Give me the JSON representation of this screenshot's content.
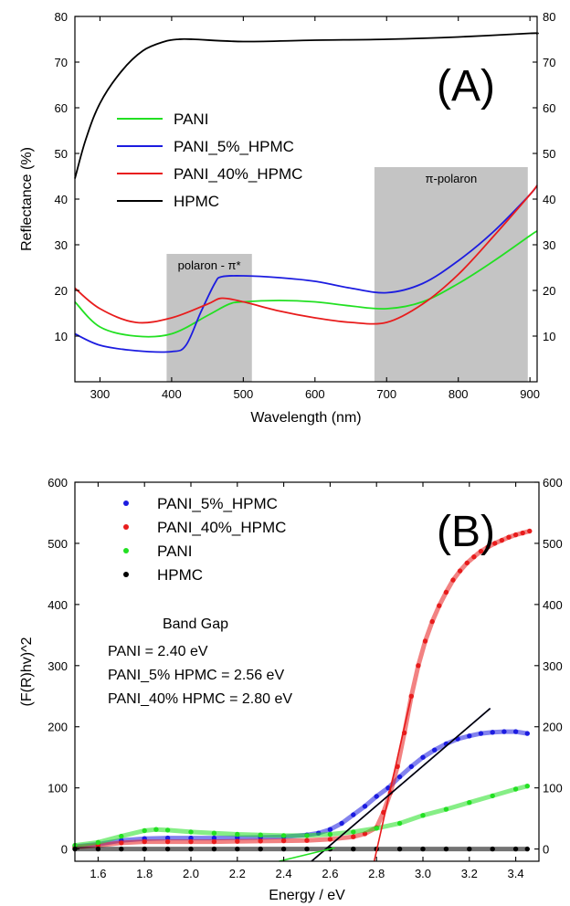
{
  "chart_data": [
    {
      "panel": "(A)",
      "type": "line",
      "xlabel": "Wavelength (nm)",
      "ylabel": "Reflectance (%)",
      "xlim": [
        265,
        910
      ],
      "ylim": [
        0,
        80
      ],
      "xticks": [
        300,
        400,
        500,
        600,
        700,
        800,
        900
      ],
      "yticks": [
        10,
        20,
        30,
        40,
        50,
        60,
        70,
        80
      ],
      "legend_position": "left",
      "shaded_regions": [
        {
          "label": "polaron - π*",
          "x": [
            393,
            512
          ],
          "y": [
            0,
            28
          ]
        },
        {
          "label": "π-polaron",
          "x": [
            683,
            897
          ],
          "y": [
            0,
            47
          ]
        }
      ],
      "series": [
        {
          "name": "PANI",
          "color": "#22e022",
          "x": [
            265,
            300,
            350,
            400,
            450,
            480,
            500,
            550,
            600,
            650,
            700,
            750,
            800,
            850,
            900,
            910
          ],
          "y": [
            17.5,
            12,
            10,
            10.5,
            14.5,
            17,
            17.5,
            17.8,
            17.5,
            16.6,
            16,
            17.5,
            21.5,
            26.5,
            32,
            33
          ]
        },
        {
          "name": "PANI_5%_HPMC",
          "color": "#1c1ce0",
          "x": [
            265,
            300,
            350,
            400,
            420,
            440,
            460,
            470,
            500,
            550,
            600,
            650,
            700,
            750,
            800,
            850,
            900,
            910
          ],
          "y": [
            10.5,
            8,
            6.8,
            6.6,
            8,
            15,
            21.5,
            23,
            23.2,
            22.8,
            22,
            20.5,
            19.5,
            21.5,
            26.5,
            33,
            41,
            43
          ]
        },
        {
          "name": "PANI_40%_HPMC",
          "color": "#e81c1c",
          "x": [
            265,
            300,
            350,
            400,
            450,
            470,
            500,
            550,
            600,
            650,
            700,
            750,
            800,
            850,
            900,
            910
          ],
          "y": [
            20.5,
            16,
            13,
            14,
            17,
            18.3,
            17.5,
            15.5,
            14,
            13,
            13,
            17,
            23.5,
            32,
            41,
            43
          ]
        },
        {
          "name": "HPMC",
          "color": "#000000",
          "x": [
            265,
            280,
            300,
            330,
            360,
            390,
            410,
            430,
            500,
            600,
            700,
            800,
            900,
            910
          ],
          "y": [
            44.5,
            53,
            61,
            68,
            72.5,
            74.5,
            75,
            75,
            74.5,
            74.8,
            75,
            75.5,
            76.3,
            76.2
          ]
        }
      ]
    },
    {
      "panel": "(B)",
      "type": "scatter",
      "xlabel": "Energy / eV",
      "ylabel": "(F(R)hv)^2",
      "xlim": [
        1.5,
        3.5
      ],
      "ylim": [
        -20,
        600
      ],
      "xticks": [
        1.6,
        1.8,
        2.0,
        2.2,
        2.4,
        2.6,
        2.8,
        3.0,
        3.2,
        3.4
      ],
      "yticks": [
        0,
        100,
        200,
        300,
        400,
        500,
        600
      ],
      "legend_position": "top-left",
      "annotation_title": "Band Gap",
      "annotation_lines": [
        "PANI = 2.40 eV",
        "PANI_5% HPMC = 2.56 eV",
        "PANI_40% HPMC = 2.80 eV"
      ],
      "series": [
        {
          "name": "PANI_5%_HPMC",
          "color": "#1c1ce0",
          "x": [
            1.5,
            1.6,
            1.7,
            1.8,
            1.9,
            2.0,
            2.1,
            2.2,
            2.3,
            2.4,
            2.5,
            2.55,
            2.6,
            2.65,
            2.7,
            2.75,
            2.8,
            2.85,
            2.9,
            2.95,
            3.0,
            3.05,
            3.1,
            3.15,
            3.2,
            3.25,
            3.3,
            3.35,
            3.4,
            3.45
          ],
          "y": [
            4,
            8,
            14,
            17,
            18,
            18,
            18,
            18.5,
            19,
            20,
            23,
            26,
            32,
            42,
            56,
            70,
            86,
            100,
            118,
            135,
            150,
            162,
            172,
            180,
            185,
            189,
            191,
            192,
            192,
            189
          ]
        },
        {
          "name": "PANI_40%_HPMC",
          "color": "#e81c1c",
          "x": [
            1.5,
            1.6,
            1.7,
            1.8,
            1.9,
            2.0,
            2.1,
            2.2,
            2.3,
            2.4,
            2.5,
            2.6,
            2.7,
            2.75,
            2.8,
            2.83,
            2.86,
            2.89,
            2.92,
            2.95,
            2.98,
            3.01,
            3.04,
            3.07,
            3.1,
            3.13,
            3.16,
            3.19,
            3.22,
            3.25,
            3.28,
            3.31,
            3.34,
            3.37,
            3.4,
            3.43,
            3.46
          ],
          "y": [
            3,
            6,
            10,
            12,
            12,
            12,
            12,
            12.5,
            13,
            13.5,
            14,
            16,
            20,
            25,
            35,
            60,
            92,
            135,
            190,
            250,
            300,
            340,
            372,
            398,
            420,
            440,
            455,
            468,
            478,
            487,
            494,
            500,
            505,
            510,
            514,
            517,
            520
          ]
        },
        {
          "name": "PANI",
          "color": "#22e022",
          "x": [
            1.5,
            1.6,
            1.7,
            1.8,
            1.85,
            1.9,
            2.0,
            2.1,
            2.2,
            2.3,
            2.4,
            2.5,
            2.6,
            2.7,
            2.8,
            2.9,
            3.0,
            3.1,
            3.2,
            3.3,
            3.4,
            3.45
          ],
          "y": [
            6,
            11,
            21,
            30,
            32,
            31,
            28,
            26,
            24,
            23,
            22,
            22,
            24,
            28,
            34,
            42,
            55,
            65,
            76,
            87,
            98,
            103
          ]
        },
        {
          "name": "HPMC",
          "color": "#000000",
          "x": [
            1.5,
            1.6,
            1.7,
            1.8,
            1.9,
            2.0,
            2.1,
            2.2,
            2.3,
            2.4,
            2.5,
            2.6,
            2.7,
            2.8,
            2.9,
            3.0,
            3.1,
            3.2,
            3.3,
            3.4,
            3.45
          ],
          "y": [
            0,
            0,
            0,
            0,
            0,
            0,
            0,
            0,
            0,
            0,
            0,
            0,
            0,
            0,
            0,
            0,
            0,
            0,
            0,
            0,
            0
          ]
        }
      ],
      "fit_lines": [
        {
          "color": "#e81c1c",
          "x": [
            2.79,
            2.95
          ],
          "y": [
            -20,
            250
          ]
        },
        {
          "color": "#1c1ce0",
          "x": [
            2.52,
            3.29
          ],
          "y": [
            -20,
            230
          ]
        },
        {
          "color": "#000000",
          "x": [
            2.52,
            3.29
          ],
          "y": [
            -20,
            230
          ]
        },
        {
          "color": "#22e022",
          "x": [
            2.38,
            2.62
          ],
          "y": [
            -20,
            2
          ]
        }
      ]
    }
  ]
}
